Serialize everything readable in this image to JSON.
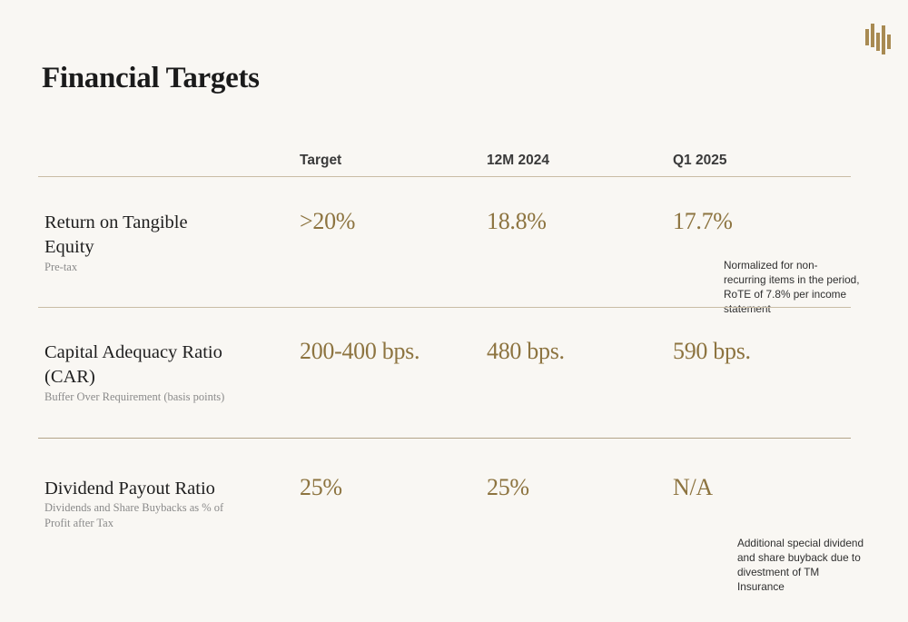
{
  "title": "Financial Targets",
  "columns": [
    "Target",
    "12M 2024",
    "Q1 2025"
  ],
  "rows": [
    {
      "label": "Return on Tangible Equity",
      "sub": "Pre-tax",
      "target": ">20%",
      "fy2024": "18.8%",
      "q1_2025": "17.7%",
      "note": "Normalized for non-recurring items in the period, RoTE of 7.8% per income statement"
    },
    {
      "label": "Capital Adequacy Ratio (CAR)",
      "sub": "Buffer Over Requirement (basis points)",
      "target": "200-400 bps.",
      "fy2024": "480 bps.",
      "q1_2025": "590 bps."
    },
    {
      "label": "Dividend Payout Ratio",
      "sub": "Dividends and Share Buybacks as % of Profit after Tax",
      "target": "25%",
      "fy2024": "25%",
      "q1_2025": "N/A",
      "note": "Additional special dividend and share buyback due to divestment of TM Insurance"
    }
  ],
  "colors": {
    "background": "#f9f7f3",
    "accent_gold": "#8d7440",
    "rule": "#c9bca5",
    "logo": "#a88a52"
  },
  "logo": {
    "icon": "brand-bars-icon"
  }
}
